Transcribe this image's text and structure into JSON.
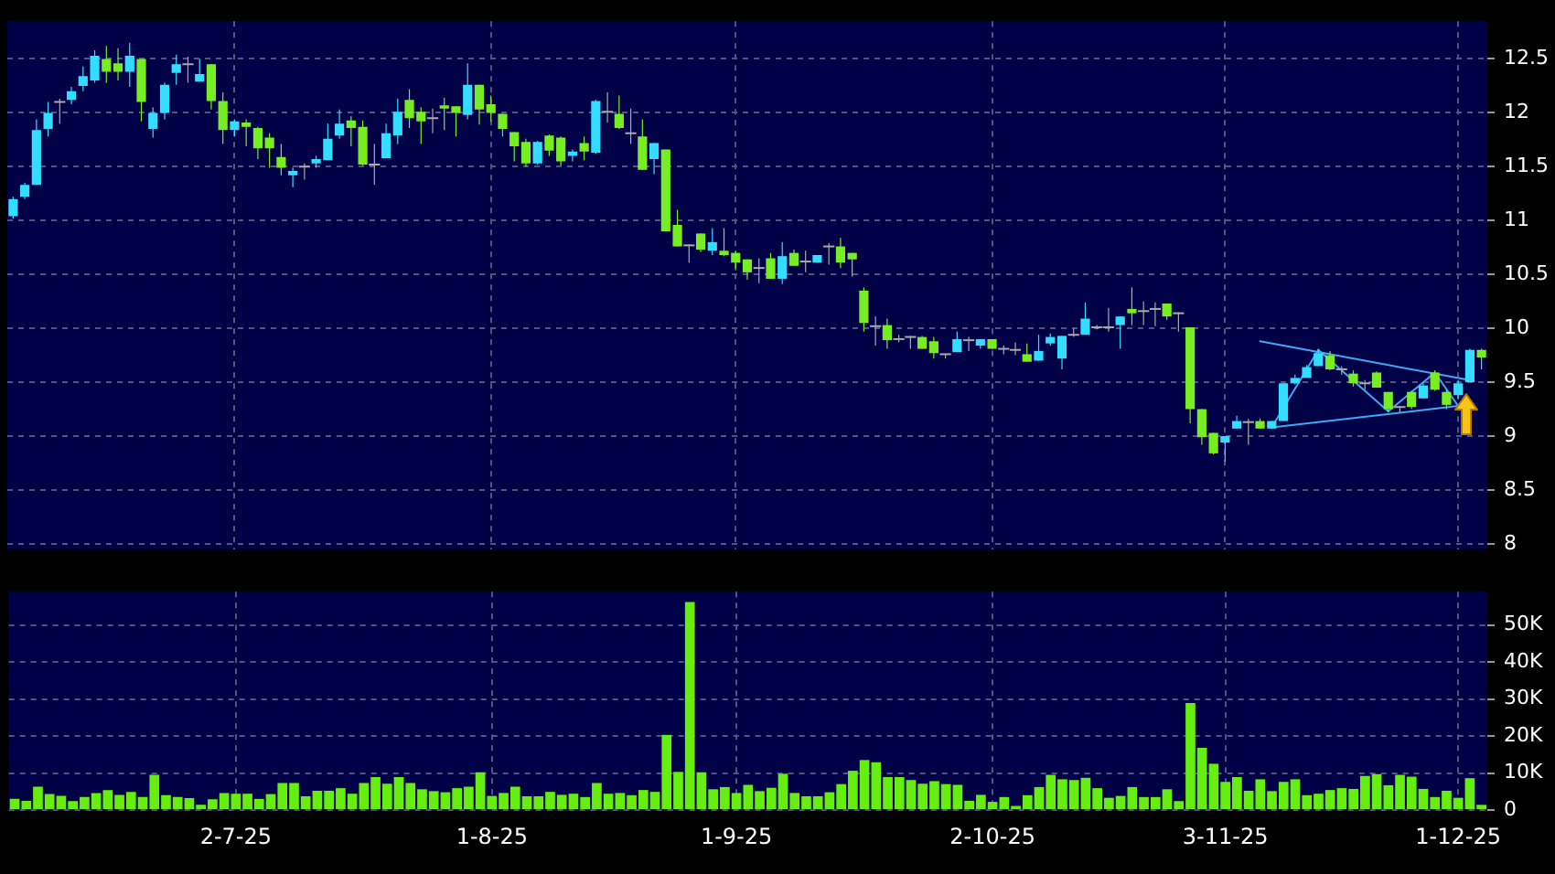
{
  "chart_data": [
    {
      "type": "candlestick",
      "categories": [
        null,
        null,
        null,
        null,
        null,
        null,
        null,
        null,
        null,
        null,
        null,
        null,
        null,
        null,
        null,
        null,
        null,
        null,
        null,
        null,
        null,
        null,
        null,
        null,
        null,
        null,
        null,
        null,
        null,
        null,
        null,
        null,
        null,
        null,
        null,
        null,
        null,
        null,
        null,
        null,
        null,
        null,
        null,
        null,
        null,
        null,
        null,
        null,
        null,
        null,
        null,
        null,
        null,
        null,
        null,
        null,
        null,
        null,
        null,
        null,
        null,
        null,
        null,
        null,
        null,
        null,
        null,
        null,
        null,
        null,
        null,
        null,
        null,
        null,
        null,
        null,
        null,
        null,
        null,
        null,
        null,
        null,
        null,
        null,
        null,
        null,
        null,
        null,
        null,
        null,
        null,
        null,
        null,
        null,
        null,
        null,
        null,
        null,
        null,
        null,
        null,
        null,
        null,
        null,
        null,
        null,
        null,
        null,
        null,
        null,
        null,
        null,
        null,
        null,
        null,
        null,
        null,
        null,
        null,
        null,
        null,
        null,
        null,
        null,
        null,
        null,
        null
      ],
      "ohlc": [
        [
          11.04,
          11.22,
          11.02,
          11.2
        ],
        [
          11.22,
          11.35,
          11.2,
          11.33
        ],
        [
          11.33,
          11.94,
          11.33,
          11.84
        ],
        [
          11.85,
          12.1,
          11.78,
          12.0
        ],
        [
          12.1,
          12.13,
          11.9,
          12.1
        ],
        [
          12.12,
          12.24,
          12.08,
          12.2
        ],
        [
          12.25,
          12.43,
          12.2,
          12.34
        ],
        [
          12.3,
          12.58,
          12.28,
          12.53
        ],
        [
          12.5,
          12.62,
          12.28,
          12.38
        ],
        [
          12.46,
          12.6,
          12.3,
          12.38
        ],
        [
          12.38,
          12.65,
          12.24,
          12.53
        ],
        [
          12.5,
          12.5,
          11.92,
          12.1
        ],
        [
          11.85,
          12.05,
          11.77,
          12.0
        ],
        [
          12.0,
          12.28,
          11.94,
          12.26
        ],
        [
          12.37,
          12.54,
          12.26,
          12.45
        ],
        [
          12.45,
          12.52,
          12.28,
          12.45
        ],
        [
          12.29,
          12.5,
          12.29,
          12.36
        ],
        [
          12.45,
          12.45,
          12.03,
          12.11
        ],
        [
          12.11,
          12.19,
          11.71,
          11.84
        ],
        [
          11.84,
          11.94,
          11.78,
          11.92
        ],
        [
          11.91,
          11.94,
          11.69,
          11.87
        ],
        [
          11.86,
          11.87,
          11.57,
          11.67
        ],
        [
          11.77,
          11.81,
          11.49,
          11.67
        ],
        [
          11.59,
          11.71,
          11.42,
          11.49
        ],
        [
          11.42,
          11.49,
          11.31,
          11.46
        ],
        [
          11.5,
          11.53,
          11.38,
          11.5
        ],
        [
          11.53,
          11.6,
          11.49,
          11.57
        ],
        [
          11.56,
          11.9,
          11.56,
          11.76
        ],
        [
          11.79,
          12.03,
          11.76,
          11.9
        ],
        [
          11.93,
          11.97,
          11.69,
          11.86
        ],
        [
          11.87,
          11.93,
          11.51,
          11.52
        ],
        [
          11.52,
          11.71,
          11.33,
          11.52
        ],
        [
          11.58,
          11.9,
          11.58,
          11.81
        ],
        [
          11.79,
          12.13,
          11.71,
          12.01
        ],
        [
          12.12,
          12.22,
          11.86,
          11.95
        ],
        [
          12.01,
          12.05,
          11.71,
          11.92
        ],
        [
          11.95,
          12.04,
          11.81,
          11.95
        ],
        [
          12.07,
          12.14,
          11.84,
          12.04
        ],
        [
          12.06,
          12.06,
          11.78,
          12.0
        ],
        [
          11.98,
          12.46,
          11.94,
          12.26
        ],
        [
          12.26,
          12.26,
          11.89,
          12.03
        ],
        [
          12.08,
          12.16,
          11.92,
          12.0
        ],
        [
          11.99,
          11.99,
          11.78,
          11.85
        ],
        [
          11.82,
          11.82,
          11.55,
          11.69
        ],
        [
          11.73,
          11.76,
          11.5,
          11.53
        ],
        [
          11.53,
          11.74,
          11.52,
          11.73
        ],
        [
          11.79,
          11.8,
          11.6,
          11.65
        ],
        [
          11.77,
          11.78,
          11.51,
          11.55
        ],
        [
          11.6,
          11.66,
          11.55,
          11.64
        ],
        [
          11.72,
          11.78,
          11.56,
          11.64
        ],
        [
          11.63,
          12.12,
          11.62,
          12.11
        ],
        [
          12.01,
          12.19,
          11.91,
          12.01
        ],
        [
          11.99,
          12.16,
          11.85,
          11.86
        ],
        [
          11.81,
          12.04,
          11.71,
          11.81
        ],
        [
          11.78,
          11.94,
          11.47,
          11.47
        ],
        [
          11.57,
          11.72,
          11.43,
          11.72
        ],
        [
          11.66,
          11.66,
          10.9,
          10.9
        ],
        [
          10.96,
          11.1,
          10.76,
          10.76
        ],
        [
          10.77,
          10.78,
          10.61,
          10.77
        ],
        [
          10.88,
          10.88,
          10.71,
          10.73
        ],
        [
          10.72,
          10.93,
          10.68,
          10.8
        ],
        [
          10.72,
          10.93,
          10.67,
          10.68
        ],
        [
          10.7,
          10.72,
          10.54,
          10.61
        ],
        [
          10.64,
          10.64,
          10.45,
          10.52
        ],
        [
          10.56,
          10.65,
          10.42,
          10.56
        ],
        [
          10.65,
          10.7,
          10.46,
          10.46
        ],
        [
          10.46,
          10.8,
          10.41,
          10.67
        ],
        [
          10.7,
          10.73,
          10.58,
          10.58
        ],
        [
          10.62,
          10.72,
          10.52,
          10.62
        ],
        [
          10.61,
          10.68,
          10.61,
          10.68
        ],
        [
          10.76,
          10.79,
          10.59,
          10.76
        ],
        [
          10.76,
          10.84,
          10.56,
          10.61
        ],
        [
          10.7,
          10.7,
          10.48,
          10.64
        ],
        [
          10.35,
          10.38,
          9.97,
          10.05
        ],
        [
          10.02,
          10.11,
          9.84,
          10.02
        ],
        [
          10.03,
          10.09,
          9.81,
          9.89
        ],
        [
          9.9,
          9.94,
          9.87,
          9.9
        ],
        [
          9.92,
          9.93,
          9.81,
          9.92
        ],
        [
          9.92,
          9.93,
          9.81,
          9.81
        ],
        [
          9.88,
          9.92,
          9.72,
          9.77
        ],
        [
          9.76,
          9.76,
          9.72,
          9.76
        ],
        [
          9.78,
          9.97,
          9.78,
          9.9
        ],
        [
          9.89,
          9.92,
          9.79,
          9.89
        ],
        [
          9.84,
          9.9,
          9.81,
          9.9
        ],
        [
          9.9,
          9.9,
          9.81,
          9.81
        ],
        [
          9.81,
          9.84,
          9.76,
          9.81
        ],
        [
          9.8,
          9.87,
          9.75,
          9.8
        ],
        [
          9.76,
          9.86,
          9.69,
          9.69
        ],
        [
          9.7,
          9.94,
          9.7,
          9.79
        ],
        [
          9.86,
          9.95,
          9.84,
          9.92
        ],
        [
          9.72,
          9.93,
          9.62,
          9.93
        ],
        [
          9.94,
          10.0,
          9.92,
          9.94
        ],
        [
          9.94,
          10.24,
          9.94,
          10.09
        ],
        [
          10.01,
          10.03,
          9.99,
          10.01
        ],
        [
          10.01,
          10.19,
          9.97,
          10.01
        ],
        [
          10.03,
          10.11,
          9.81,
          10.11
        ],
        [
          10.18,
          10.38,
          10.03,
          10.14
        ],
        [
          10.16,
          10.25,
          10.03,
          10.16
        ],
        [
          10.18,
          10.24,
          10.02,
          10.18
        ],
        [
          10.23,
          10.23,
          10.08,
          10.11
        ],
        [
          10.14,
          10.15,
          9.97,
          10.14
        ],
        [
          10.01,
          10.01,
          9.12,
          9.25
        ],
        [
          9.25,
          9.25,
          8.92,
          8.99
        ],
        [
          9.03,
          9.03,
          8.83,
          8.84
        ],
        [
          8.94,
          9.0,
          8.76,
          9.0
        ],
        [
          9.07,
          9.19,
          9.07,
          9.14
        ],
        [
          9.13,
          9.16,
          8.92,
          9.13
        ],
        [
          9.14,
          9.16,
          9.07,
          9.07
        ],
        [
          9.07,
          9.14,
          9.07,
          9.14
        ],
        [
          9.14,
          9.49,
          9.14,
          9.49
        ],
        [
          9.49,
          9.57,
          9.48,
          9.54
        ],
        [
          9.54,
          9.66,
          9.54,
          9.64
        ],
        [
          9.65,
          9.81,
          9.65,
          9.77
        ],
        [
          9.75,
          9.79,
          9.61,
          9.62
        ],
        [
          9.62,
          9.65,
          9.57,
          9.62
        ],
        [
          9.58,
          9.61,
          9.46,
          9.49
        ],
        [
          9.49,
          9.52,
          9.43,
          9.49
        ],
        [
          9.59,
          9.6,
          9.45,
          9.45
        ],
        [
          9.41,
          9.41,
          9.22,
          9.25
        ],
        [
          9.27,
          9.28,
          9.22,
          9.27
        ],
        [
          9.41,
          9.42,
          9.25,
          9.27
        ],
        [
          9.35,
          9.49,
          9.35,
          9.47
        ],
        [
          9.59,
          9.61,
          9.42,
          9.43
        ],
        [
          9.41,
          9.43,
          9.25,
          9.29
        ],
        [
          9.38,
          9.52,
          9.35,
          9.49
        ],
        [
          9.5,
          9.81,
          9.5,
          9.8
        ],
        [
          9.8,
          9.81,
          9.62,
          9.73
        ]
      ],
      "colors": [
        "#33ddff",
        "#33ddff",
        "#33ddff",
        "#33ddff",
        "#aaaaaa",
        "#33ddff",
        "#33ddff",
        "#33ddff",
        "#77ee22",
        "#77ee22",
        "#33ddff",
        "#77ee22",
        "#33ddff",
        "#33ddff",
        "#33ddff",
        "#aaaaaa",
        "#33ddff",
        "#77ee22",
        "#77ee22",
        "#33ddff",
        "#77ee22",
        "#77ee22",
        "#77ee22",
        "#77ee22",
        "#33ddff",
        "#aaaaaa",
        "#33ddff",
        "#33ddff",
        "#33ddff",
        "#77ee22",
        "#77ee22",
        "#aaaaaa",
        "#33ddff",
        "#33ddff",
        "#77ee22",
        "#77ee22",
        "#aaaaaa",
        "#77ee22",
        "#77ee22",
        "#33ddff",
        "#77ee22",
        "#77ee22",
        "#77ee22",
        "#77ee22",
        "#77ee22",
        "#33ddff",
        "#77ee22",
        "#77ee22",
        "#33ddff",
        "#77ee22",
        "#33ddff",
        "#aaaaaa",
        "#77ee22",
        "#aaaaaa",
        "#77ee22",
        "#33ddff",
        "#77ee22",
        "#77ee22",
        "#aaaaaa",
        "#77ee22",
        "#33ddff",
        "#77ee22",
        "#77ee22",
        "#77ee22",
        "#aaaaaa",
        "#77ee22",
        "#33ddff",
        "#77ee22",
        "#aaaaaa",
        "#33ddff",
        "#aaaaaa",
        "#77ee22",
        "#77ee22",
        "#77ee22",
        "#aaaaaa",
        "#77ee22",
        "#aaaaaa",
        "#aaaaaa",
        "#77ee22",
        "#77ee22",
        "#aaaaaa",
        "#33ddff",
        "#aaaaaa",
        "#33ddff",
        "#77ee22",
        "#aaaaaa",
        "#aaaaaa",
        "#77ee22",
        "#33ddff",
        "#33ddff",
        "#33ddff",
        "#aaaaaa",
        "#33ddff",
        "#aaaaaa",
        "#aaaaaa",
        "#33ddff",
        "#77ee22",
        "#aaaaaa",
        "#aaaaaa",
        "#77ee22",
        "#aaaaaa",
        "#77ee22",
        "#77ee22",
        "#77ee22",
        "#33ddff",
        "#33ddff",
        "#aaaaaa",
        "#77ee22",
        "#33ddff",
        "#33ddff",
        "#33ddff",
        "#33ddff",
        "#33ddff",
        "#77ee22",
        "#aaaaaa",
        "#77ee22",
        "#aaaaaa",
        "#77ee22",
        "#77ee22",
        "#aaaaaa",
        "#77ee22",
        "#33ddff",
        "#77ee22",
        "#77ee22",
        "#33ddff",
        "#33ddff",
        "#77ee22"
      ],
      "ylim": [
        7.95,
        12.85
      ],
      "yticks": [
        8,
        8.5,
        9,
        9.5,
        10,
        10.5,
        11,
        11.5,
        12,
        12.5
      ],
      "grid": true,
      "tick_labels": "y",
      "series": [
        {
          "type": "line",
          "color": "#3fa9f5",
          "values": [
            null,
            null,
            null,
            null,
            null,
            null,
            null,
            null,
            null,
            null,
            null,
            null,
            null,
            null,
            null,
            null,
            null,
            null,
            null,
            null,
            null,
            null,
            null,
            null,
            null,
            null,
            null,
            null,
            null,
            null,
            null,
            null,
            null,
            null,
            null,
            null,
            null,
            null,
            null,
            null,
            null,
            null,
            null,
            null,
            null,
            null,
            null,
            null,
            null,
            null,
            null,
            null,
            null,
            null,
            null,
            null,
            null,
            null,
            null,
            null,
            null,
            null,
            null,
            null,
            null,
            null,
            null,
            null,
            null,
            null,
            null,
            null,
            null,
            null,
            null,
            null,
            null,
            null,
            null,
            null,
            null,
            null,
            null,
            null,
            null,
            null,
            null,
            null,
            null,
            null,
            null,
            null,
            null,
            null,
            null,
            null,
            null,
            null,
            null,
            null,
            null,
            null,
            null,
            null,
            null,
            null,
            null,
            9.88,
            null,
            null,
            null,
            null,
            null,
            null,
            null,
            null,
            null,
            null,
            null,
            null,
            null,
            null,
            null,
            null,
            null,
            9.52,
            null
          ]
        },
        {
          "type": "line",
          "color": "#3fa9f5",
          "values": [
            null,
            null,
            null,
            null,
            null,
            null,
            null,
            null,
            null,
            null,
            null,
            null,
            null,
            null,
            null,
            null,
            null,
            null,
            null,
            null,
            null,
            null,
            null,
            null,
            null,
            null,
            null,
            null,
            null,
            null,
            null,
            null,
            null,
            null,
            null,
            null,
            null,
            null,
            null,
            null,
            null,
            null,
            null,
            null,
            null,
            null,
            null,
            null,
            null,
            null,
            null,
            null,
            null,
            null,
            null,
            null,
            null,
            null,
            null,
            null,
            null,
            null,
            null,
            null,
            null,
            null,
            null,
            null,
            null,
            null,
            null,
            null,
            null,
            null,
            null,
            null,
            null,
            null,
            null,
            null,
            null,
            null,
            null,
            null,
            null,
            null,
            null,
            null,
            null,
            null,
            null,
            null,
            null,
            null,
            null,
            null,
            null,
            null,
            null,
            null,
            null,
            null,
            null,
            null,
            null,
            null,
            null,
            null,
            9.08,
            null,
            null,
            null,
            null,
            null,
            null,
            null,
            null,
            null,
            null,
            null,
            null,
            null,
            null,
            null,
            9.28,
            null,
            null
          ]
        },
        {
          "type": "line",
          "color": "#3fa9f5",
          "values": [
            null,
            null,
            null,
            null,
            null,
            null,
            null,
            null,
            null,
            null,
            null,
            null,
            null,
            null,
            null,
            null,
            null,
            null,
            null,
            null,
            null,
            null,
            null,
            null,
            null,
            null,
            null,
            null,
            null,
            null,
            null,
            null,
            null,
            null,
            null,
            null,
            null,
            null,
            null,
            null,
            null,
            null,
            null,
            null,
            null,
            null,
            null,
            null,
            null,
            null,
            null,
            null,
            null,
            null,
            null,
            null,
            null,
            null,
            null,
            null,
            null,
            null,
            null,
            null,
            null,
            null,
            null,
            null,
            null,
            null,
            null,
            null,
            null,
            null,
            null,
            null,
            null,
            null,
            null,
            null,
            null,
            null,
            null,
            null,
            null,
            null,
            null,
            null,
            null,
            null,
            null,
            null,
            null,
            null,
            null,
            null,
            null,
            null,
            null,
            null,
            null,
            null,
            null,
            null,
            null,
            null,
            null,
            null,
            9.08,
            null,
            null,
            null,
            9.8,
            null,
            null,
            null,
            null,
            null,
            9.23,
            null,
            null,
            null,
            9.59,
            null,
            9.28,
            null,
            null
          ]
        }
      ]
    },
    {
      "type": "bar",
      "categories": [
        null,
        null,
        null,
        null,
        null,
        null,
        null,
        null,
        null,
        null,
        null,
        null,
        null,
        null,
        null,
        null,
        null,
        null,
        null,
        "2-7-25",
        null,
        null,
        null,
        null,
        null,
        null,
        null,
        null,
        null,
        null,
        null,
        null,
        null,
        null,
        null,
        null,
        null,
        null,
        null,
        null,
        null,
        "1-8-25",
        null,
        null,
        null,
        null,
        null,
        null,
        null,
        null,
        null,
        null,
        null,
        null,
        null,
        null,
        null,
        null,
        null,
        null,
        null,
        null,
        "1-9-25",
        null,
        null,
        null,
        null,
        null,
        null,
        null,
        null,
        null,
        null,
        null,
        null,
        null,
        null,
        null,
        null,
        null,
        null,
        null,
        null,
        null,
        "2-10-25",
        null,
        null,
        null,
        null,
        null,
        null,
        null,
        null,
        null,
        null,
        null,
        null,
        null,
        null,
        null,
        null,
        null,
        null,
        null,
        "3-11-25",
        null,
        null,
        null,
        null,
        null,
        null,
        null,
        null,
        null,
        null,
        null,
        null,
        null,
        null,
        null,
        null,
        null,
        null,
        null,
        "1-12-25",
        null,
        null
      ],
      "values": [
        3000,
        2500,
        6300,
        4300,
        3800,
        2400,
        3500,
        4600,
        5400,
        4100,
        4900,
        3500,
        9500,
        4000,
        3500,
        3200,
        1400,
        2900,
        4600,
        4400,
        4400,
        3000,
        4300,
        7300,
        7300,
        3700,
        5200,
        5200,
        5900,
        4400,
        7300,
        8900,
        7100,
        8900,
        7300,
        5600,
        5100,
        4800,
        5900,
        6300,
        10200,
        3800,
        4600,
        6300,
        3700,
        3700,
        4900,
        4100,
        4400,
        3500,
        7300,
        4400,
        4600,
        4000,
        5400,
        4900,
        20300,
        10300,
        56200,
        10200,
        5600,
        6200,
        4600,
        6800,
        5100,
        6000,
        9800,
        4600,
        3700,
        3700,
        4800,
        7000,
        10600,
        13500,
        12900,
        8900,
        8900,
        8100,
        7100,
        7800,
        7000,
        6800,
        2500,
        4100,
        2200,
        3500,
        1100,
        4000,
        6200,
        9500,
        8300,
        8100,
        8700,
        5900,
        3300,
        3800,
        6200,
        3500,
        3500,
        5600,
        2400,
        28900,
        16800,
        12500,
        7600,
        8900,
        5200,
        8300,
        5100,
        7600,
        8300,
        4000,
        4400,
        5400,
        5900,
        5700,
        9200,
        9700,
        6700,
        9500,
        9000,
        5700,
        3500,
        5200,
        3300,
        8600,
        1400
      ],
      "color": "#66ee11",
      "ylim": [
        0,
        59000
      ],
      "yticks": [
        0,
        {
          "value": 10000,
          "label": "10K"
        },
        {
          "value": 20000,
          "label": "20K"
        },
        {
          "value": 30000,
          "label": "30K"
        },
        {
          "value": 40000,
          "label": "40K"
        },
        {
          "value": 50000,
          "label": "50K"
        }
      ],
      "grid": true
    }
  ]
}
